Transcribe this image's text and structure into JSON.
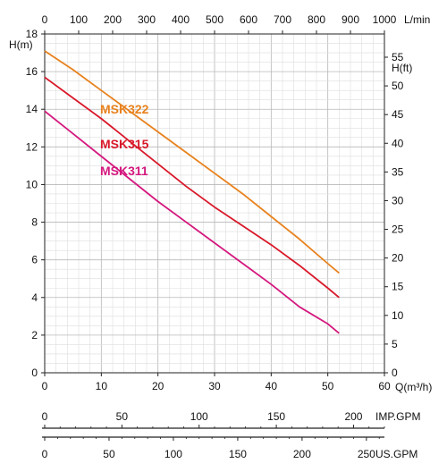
{
  "chart_data": {
    "type": "line",
    "title": "",
    "x": {
      "label": "Q(m³/h)",
      "range": [
        0,
        60
      ],
      "ticks": [
        0,
        10,
        20,
        30,
        40,
        50,
        60
      ],
      "tick_labels": [
        "0",
        "10",
        "20",
        "30",
        "40",
        "50",
        "60"
      ]
    },
    "y_left": {
      "label": "H(m)",
      "range": [
        0,
        18
      ],
      "ticks": [
        0,
        2,
        4,
        6,
        8,
        10,
        12,
        14,
        16,
        18
      ],
      "tick_labels": [
        "0",
        "2",
        "4",
        "6",
        "8",
        "10",
        "12",
        "14",
        "16",
        "18"
      ]
    },
    "y_right": {
      "label": "H(ft)",
      "range": [
        0,
        59.05
      ],
      "ticks": [
        0,
        5,
        10,
        15,
        20,
        25,
        30,
        35,
        40,
        45,
        50,
        55
      ],
      "tick_labels": [
        "0",
        "5",
        "10",
        "15",
        "20",
        "25",
        "30",
        "35",
        "40",
        "45",
        "50",
        "55"
      ]
    },
    "x_top": {
      "label": "L/min",
      "range": [
        0,
        1000
      ],
      "ticks": [
        0,
        100,
        200,
        300,
        400,
        500,
        600,
        700,
        800,
        900,
        1000
      ],
      "tick_labels": [
        "0",
        "100",
        "200",
        "300",
        "400",
        "500",
        "600",
        "700",
        "800",
        "900",
        "1000"
      ]
    },
    "x_imp_gpm": {
      "label": "IMP.GPM",
      "range": [
        0,
        220
      ],
      "ticks": [
        0,
        50,
        100,
        150,
        200
      ],
      "tick_labels": [
        "0",
        "50",
        "100",
        "150",
        "200"
      ]
    },
    "x_us_gpm": {
      "label": "US.GPM",
      "range": [
        0,
        264
      ],
      "ticks": [
        0,
        50,
        100,
        150,
        200,
        250
      ],
      "tick_labels": [
        "0",
        "50",
        "100",
        "150",
        "200",
        "250"
      ]
    },
    "grid": true,
    "series": [
      {
        "name": "MSK322",
        "color": "#e8821e",
        "x": [
          0,
          5,
          10,
          15,
          20,
          25,
          30,
          35,
          40,
          45,
          50,
          52
        ],
        "y": [
          17.1,
          16.1,
          15.0,
          13.9,
          12.8,
          11.7,
          10.6,
          9.5,
          8.3,
          7.1,
          5.8,
          5.3
        ]
      },
      {
        "name": "MSK315",
        "color": "#d9182a",
        "x": [
          0,
          5,
          10,
          15,
          20,
          25,
          30,
          35,
          40,
          45,
          50,
          52
        ],
        "y": [
          15.7,
          14.6,
          13.5,
          12.3,
          11.1,
          9.9,
          8.8,
          7.8,
          6.8,
          5.7,
          4.5,
          4.0
        ]
      },
      {
        "name": "MSK311",
        "color": "#d4187e",
        "x": [
          0,
          5,
          10,
          15,
          20,
          25,
          30,
          35,
          40,
          45,
          50,
          52
        ],
        "y": [
          13.9,
          12.7,
          11.5,
          10.3,
          9.1,
          8.0,
          6.9,
          5.8,
          4.7,
          3.5,
          2.6,
          2.1
        ]
      }
    ]
  }
}
